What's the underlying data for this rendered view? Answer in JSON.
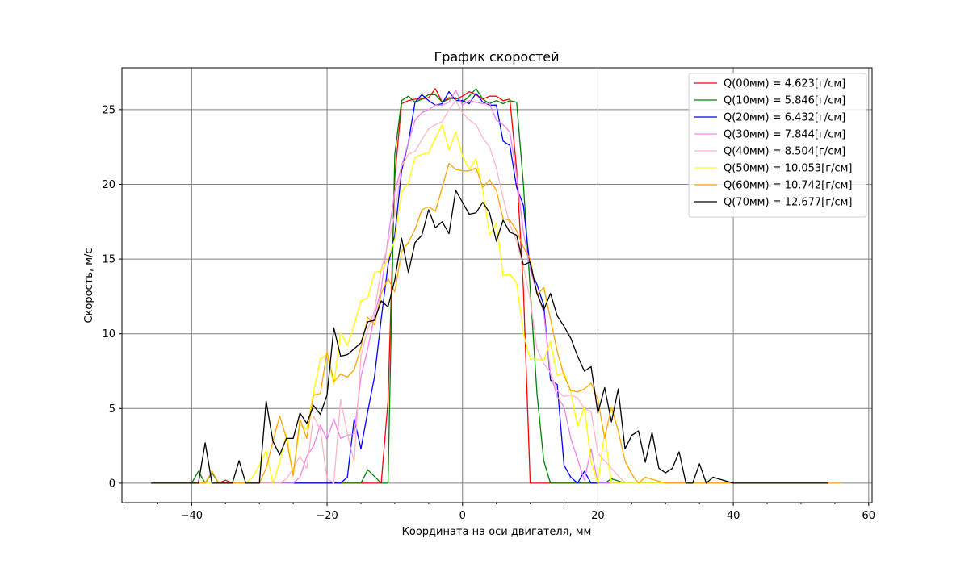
{
  "chart_data": {
    "type": "line",
    "title": "График скоростей",
    "xlabel": "Координата на оси двигателя, мм",
    "ylabel": "Скорость, м/с",
    "xlim": [
      -50.3,
      60.5
    ],
    "ylim": [
      -1.3,
      27.8
    ],
    "xticks": [
      -40,
      -20,
      0,
      20,
      40,
      60
    ],
    "yticks": [
      0,
      5,
      10,
      15,
      20,
      25
    ],
    "grid": true,
    "legend_position": "top-right",
    "series": [
      {
        "name": "Q(00мм) = 4.623[г/см]",
        "color": "#ff0000",
        "x": [
          -46,
          -41,
          -36,
          -35,
          -34,
          -32,
          -30,
          -28,
          -26,
          -22,
          -18,
          -14,
          -12,
          -11,
          -10,
          -9,
          -8,
          -7,
          -6,
          -5,
          -4,
          -3,
          -2,
          -1,
          0,
          1,
          2,
          3,
          4,
          5,
          6,
          7,
          8,
          9,
          10,
          14,
          20,
          30,
          40,
          50,
          54
        ],
        "y": [
          0,
          0,
          0,
          0.2,
          0,
          0,
          0,
          0,
          0,
          0,
          0,
          0,
          0,
          5.5,
          20.5,
          25.4,
          25.6,
          25.7,
          25.7,
          25.8,
          26.4,
          25.5,
          25.8,
          25.7,
          25.9,
          26.2,
          26.0,
          25.7,
          25.9,
          25.9,
          25.6,
          25.7,
          21.0,
          13.0,
          0,
          0,
          0,
          0,
          0,
          0,
          0
        ]
      },
      {
        "name": "Q(10мм) = 5.846[г/см]",
        "color": "#008000",
        "x": [
          -46,
          -40,
          -39,
          -38,
          -37,
          -36,
          -34,
          -30,
          -26,
          -20,
          -18,
          -16,
          -15,
          -14,
          -12,
          -11,
          -10,
          -9,
          -8,
          -7,
          -6,
          -5,
          -4,
          -3,
          -2,
          -1,
          0,
          1,
          2,
          3,
          4,
          5,
          6,
          7,
          8,
          9,
          10,
          11,
          12,
          13,
          16,
          20,
          21,
          22,
          24,
          30,
          40,
          50,
          54
        ],
        "y": [
          0,
          0,
          0.8,
          0,
          0.7,
          0,
          0,
          0,
          0,
          0,
          0,
          0,
          0,
          0.9,
          0,
          0,
          22.0,
          25.6,
          25.9,
          25.5,
          25.7,
          26.0,
          26.0,
          25.5,
          25.7,
          25.8,
          25.5,
          25.9,
          26.4,
          25.7,
          25.4,
          25.6,
          25.4,
          25.6,
          25.5,
          20.0,
          13.0,
          6.0,
          1.5,
          0,
          0,
          0,
          0,
          0.3,
          0,
          0,
          0,
          0,
          0
        ]
      },
      {
        "name": "Q(20мм) = 6.432[г/см]",
        "color": "#0000ff",
        "x": [
          -46,
          -36,
          -30,
          -24,
          -20,
          -18,
          -17,
          -16,
          -15,
          -14,
          -13,
          -12,
          -11,
          -10,
          -9,
          -8,
          -7,
          -6,
          -5,
          -4,
          -3,
          -2,
          -1,
          0,
          1,
          2,
          3,
          4,
          5,
          6,
          7,
          8,
          9,
          10,
          11,
          12,
          13,
          14,
          15,
          16,
          17,
          18,
          19,
          20,
          24,
          30,
          40,
          50,
          54
        ],
        "y": [
          0,
          0,
          0,
          0,
          0,
          0,
          0.4,
          4.3,
          2.3,
          4.8,
          7.1,
          11.0,
          14.6,
          16.6,
          20.9,
          22.8,
          25.5,
          26.0,
          25.6,
          25.3,
          25.4,
          26.2,
          25.6,
          25.6,
          25.4,
          26.1,
          25.5,
          25.3,
          25.3,
          22.9,
          22.6,
          19.8,
          18.6,
          14.3,
          13.3,
          11.9,
          6.9,
          6.6,
          1.2,
          0.4,
          0,
          0.8,
          0,
          0,
          0,
          0,
          0,
          0,
          0
        ]
      },
      {
        "name": "Q(30мм) = 7.844[г/см]",
        "color": "#ee82ee",
        "x": [
          -46,
          -30,
          -26,
          -25,
          -24,
          -23,
          -22,
          -21,
          -20,
          -19,
          -18,
          -17,
          -16,
          -15,
          -14,
          -13,
          -12,
          -11,
          -10,
          -9,
          -8,
          -7,
          -6,
          -5,
          -4,
          -3,
          -2,
          -1,
          0,
          1,
          2,
          3,
          4,
          5,
          6,
          7,
          8,
          9,
          10,
          11,
          12,
          13,
          14,
          15,
          16,
          17,
          18,
          19,
          20,
          24,
          30,
          40,
          50,
          54
        ],
        "y": [
          0,
          0,
          0,
          0,
          0.4,
          1.8,
          2.5,
          3.9,
          2.9,
          4.3,
          3.0,
          3.2,
          3.3,
          7.1,
          9.0,
          11.2,
          13.0,
          16.4,
          19.5,
          21.2,
          22.8,
          24.3,
          24.8,
          25.0,
          25.3,
          25.3,
          25.5,
          26.3,
          25.3,
          25.6,
          25.5,
          25.4,
          25.4,
          24.3,
          24.0,
          23.5,
          20.6,
          16.8,
          14.3,
          12.8,
          11.4,
          7.3,
          5.8,
          5.1,
          3.0,
          1.6,
          0.2,
          2.3,
          0,
          0,
          0,
          0,
          0,
          0
        ]
      },
      {
        "name": "Q(40мм) = 8.504[г/см]",
        "color": "#ffb6c1",
        "x": [
          -46,
          -30,
          -28,
          -27,
          -26,
          -25,
          -24,
          -23,
          -22,
          -21,
          -20,
          -19,
          -18,
          -17,
          -16,
          -15,
          -14,
          -13,
          -12,
          -11,
          -10,
          -9,
          -8,
          -7,
          -6,
          -5,
          -4,
          -3,
          -2,
          -1,
          0,
          1,
          2,
          3,
          4,
          5,
          6,
          7,
          8,
          9,
          10,
          11,
          12,
          13,
          14,
          15,
          16,
          17,
          18,
          19,
          20,
          24,
          30,
          40,
          50,
          54
        ],
        "y": [
          0,
          0,
          0,
          0,
          0.3,
          1.0,
          1.8,
          1.0,
          4.5,
          3.6,
          0.3,
          0.0,
          5.6,
          3.3,
          1.4,
          8.5,
          10.3,
          11.5,
          14.3,
          16.0,
          18.0,
          21.2,
          22.0,
          22.2,
          23.0,
          23.7,
          24.0,
          24.2,
          25.0,
          25.6,
          24.8,
          24.3,
          24.0,
          23.1,
          22.5,
          21.1,
          19.1,
          17.3,
          16.2,
          14.5,
          12.3,
          9.0,
          8.0,
          7.4,
          6.2,
          5.8,
          5.9,
          5.7,
          5.0,
          4.8,
          2.0,
          0,
          0,
          0,
          0,
          0
        ]
      },
      {
        "name": "Q(50мм) = 10.053[г/см]",
        "color": "#ffff00",
        "x": [
          -46,
          -32,
          -31,
          -30,
          -29,
          -28,
          -27,
          -26,
          -25,
          -24,
          -23,
          -22,
          -21,
          -20,
          -19,
          -18,
          -17,
          -16,
          -15,
          -14,
          -13,
          -12,
          -11,
          -10,
          -9,
          -8,
          -7,
          -6,
          -5,
          -4,
          -3,
          -2,
          -1,
          0,
          1,
          2,
          3,
          4,
          5,
          6,
          7,
          8,
          9,
          10,
          11,
          12,
          13,
          14,
          15,
          16,
          17,
          18,
          19,
          20,
          21,
          22,
          24,
          30,
          40,
          50,
          54
        ],
        "y": [
          0,
          0,
          0.4,
          1.2,
          2.2,
          0,
          1.4,
          3.3,
          0.6,
          3.9,
          3.6,
          6.1,
          8.3,
          8.6,
          6.6,
          10.1,
          9.2,
          10.6,
          12.2,
          12.4,
          14.1,
          14.2,
          15.0,
          16.3,
          19.5,
          20.1,
          21.8,
          22.0,
          22.1,
          23.1,
          24.0,
          22.3,
          23.5,
          21.9,
          21.0,
          21.7,
          19.6,
          16.6,
          17.4,
          13.9,
          14.0,
          13.4,
          10.0,
          8.3,
          8.3,
          8.2,
          9.5,
          7.2,
          7.4,
          6.1,
          3.8,
          5.1,
          1.4,
          0,
          3.4,
          0,
          0,
          0,
          0,
          0,
          0
        ]
      },
      {
        "name": "Q(60мм) = 10.742[г/см]",
        "color": "#ffa500",
        "x": [
          -46,
          -38,
          -37,
          -36,
          -34,
          -30,
          -29,
          -28,
          -27,
          -26,
          -25,
          -24,
          -23,
          -22,
          -21,
          -20,
          -19,
          -18,
          -17,
          -16,
          -15,
          -14,
          -13,
          -12,
          -11,
          -10,
          -9,
          -8,
          -7,
          -6,
          -5,
          -4,
          -3,
          -2,
          -1,
          0,
          1,
          2,
          3,
          4,
          5,
          6,
          7,
          8,
          9,
          10,
          11,
          12,
          13,
          14,
          15,
          16,
          17,
          18,
          19,
          20,
          21,
          22,
          23,
          24,
          25,
          26,
          27,
          30,
          40,
          50,
          56
        ],
        "y": [
          0,
          0,
          0.8,
          0,
          0,
          0,
          1.0,
          2.8,
          4.5,
          3.0,
          0.5,
          4.3,
          3.0,
          5.9,
          6.0,
          8.8,
          6.8,
          7.3,
          7.1,
          7.6,
          9.1,
          11.1,
          10.6,
          12.7,
          13.7,
          12.8,
          15.5,
          16.1,
          17.0,
          18.3,
          18.5,
          18.2,
          19.8,
          21.4,
          21.0,
          20.9,
          20.9,
          21.1,
          19.8,
          20.3,
          19.6,
          17.7,
          17.6,
          16.9,
          15.8,
          15.0,
          12.6,
          13.1,
          11.0,
          8.8,
          7.2,
          6.2,
          6.1,
          6.3,
          6.7,
          5.6,
          3.0,
          5.1,
          3.5,
          1.5,
          0.6,
          0,
          0.4,
          0,
          0,
          0,
          0
        ]
      },
      {
        "name": "Q(70мм) = 12.677[г/см]",
        "color": "#000000",
        "x": [
          -46,
          -39,
          -38,
          -37,
          -36,
          -34,
          -33,
          -32,
          -31,
          -30,
          -29,
          -28,
          -27,
          -26,
          -25,
          -24,
          -23,
          -22,
          -21,
          -20,
          -19,
          -18,
          -17,
          -16,
          -15,
          -14,
          -13,
          -12,
          -11,
          -10,
          -9,
          -8,
          -7,
          -6,
          -5,
          -4,
          -3,
          -2,
          -1,
          0,
          1,
          2,
          3,
          4,
          5,
          6,
          7,
          8,
          9,
          10,
          11,
          12,
          13,
          14,
          15,
          16,
          17,
          18,
          19,
          20,
          21,
          22,
          23,
          24,
          25,
          26,
          27,
          28,
          29,
          30,
          31,
          32,
          33,
          34,
          35,
          36,
          37,
          40,
          50,
          54
        ],
        "y": [
          0,
          0,
          2.7,
          0,
          0,
          0,
          1.5,
          0,
          0,
          0,
          5.5,
          2.8,
          1.9,
          3.0,
          3.0,
          4.7,
          4.0,
          5.2,
          4.6,
          5.9,
          10.4,
          8.5,
          8.6,
          9.0,
          9.4,
          10.8,
          10.9,
          12.2,
          11.8,
          13.6,
          16.4,
          14.1,
          16.1,
          16.6,
          18.3,
          17.1,
          17.5,
          16.7,
          19.6,
          18.8,
          18.0,
          18.1,
          18.8,
          18.1,
          16.2,
          17.6,
          16.8,
          16.6,
          14.6,
          14.8,
          12.7,
          11.6,
          12.7,
          11.2,
          10.5,
          9.7,
          8.5,
          7.5,
          7.8,
          4.7,
          6.4,
          4.1,
          6.3,
          2.3,
          3.2,
          3.5,
          1.4,
          3.4,
          1.0,
          0.7,
          1.0,
          2.1,
          0,
          0,
          1.3,
          0,
          0.4,
          0,
          0,
          0
        ]
      }
    ]
  }
}
